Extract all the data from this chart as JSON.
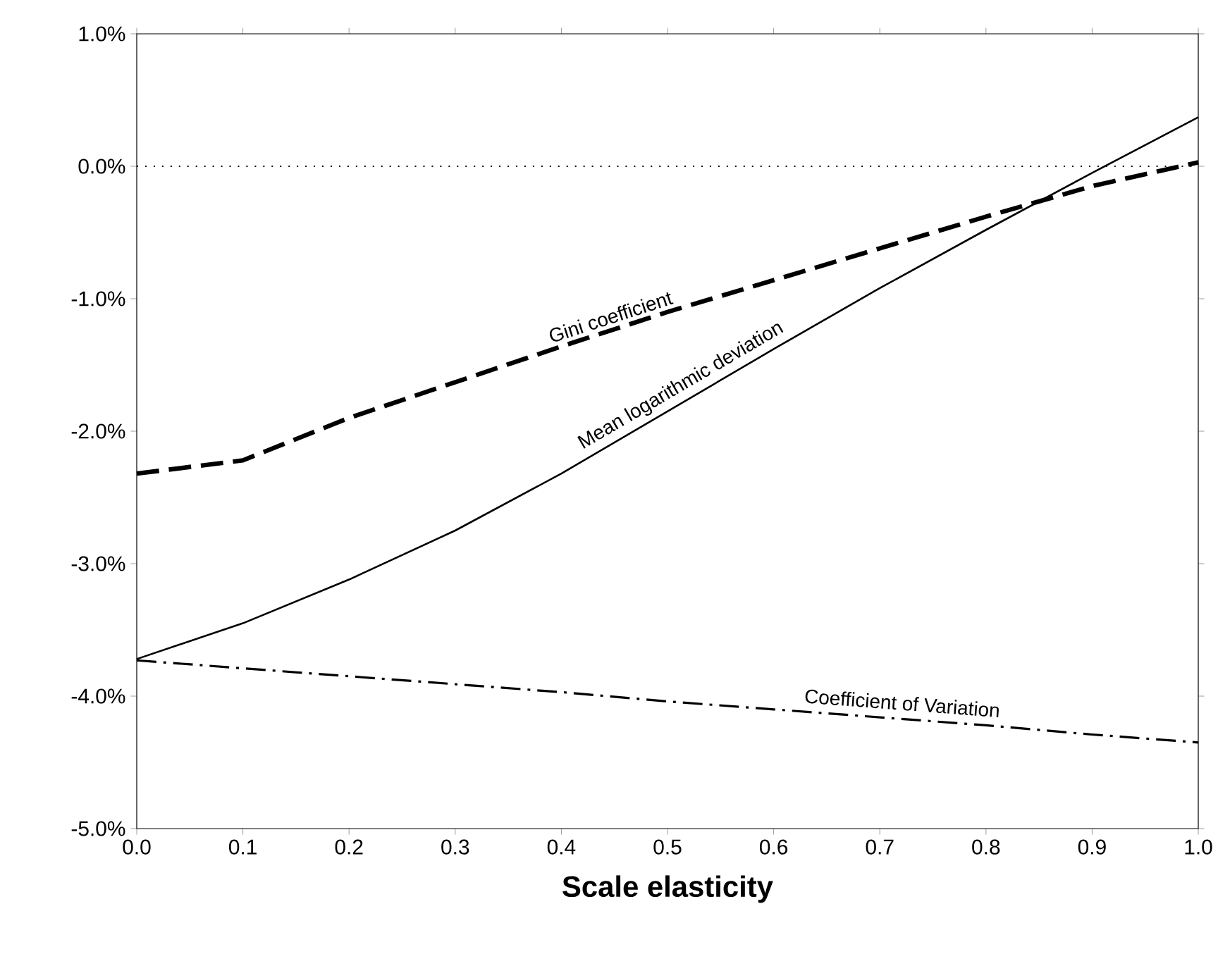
{
  "chart_data": {
    "type": "line",
    "xlabel": "Scale elasticity",
    "x": [
      0,
      0.1,
      0.2,
      0.3,
      0.4,
      0.5,
      0.6,
      0.7,
      0.8,
      0.9,
      1.0
    ],
    "series": [
      {
        "name": "Gini coefficient",
        "color": "#000000",
        "line_style": "dashed",
        "values": [
          -2.32,
          -2.22,
          -1.9,
          -1.63,
          -1.36,
          -1.1,
          -0.86,
          -0.62,
          -0.38,
          -0.15,
          0.03
        ]
      },
      {
        "name": "Mean logarithmic deviation",
        "color": "#000000",
        "line_style": "solid",
        "values": [
          -3.72,
          -3.45,
          -3.12,
          -2.75,
          -2.32,
          -1.85,
          -1.38,
          -0.92,
          -0.48,
          -0.05,
          0.37
        ]
      },
      {
        "name": "Coefficient of Variation",
        "color": "#000000",
        "line_style": "dashdot",
        "values": [
          -3.73,
          -3.79,
          -3.85,
          -3.91,
          -3.97,
          -4.04,
          -4.1,
          -4.16,
          -4.22,
          -4.29,
          -4.35
        ]
      }
    ],
    "xlim": [
      0,
      1.0
    ],
    "ylim": [
      -5,
      1
    ],
    "xticks": [
      {
        "value": 0,
        "label": "0.0"
      },
      0.1,
      0.2,
      0.3,
      0.4,
      0.5,
      0.6,
      0.7,
      0.8,
      0.9,
      {
        "value": 1.0,
        "label": "1.0"
      }
    ],
    "yticks": [
      {
        "value": -5,
        "label": "-5.0%"
      },
      {
        "value": -4,
        "label": "-4.0%"
      },
      {
        "value": -3,
        "label": "-3.0%"
      },
      {
        "value": -2,
        "label": "-2.0%"
      },
      {
        "value": -1,
        "label": "-1.0%"
      },
      {
        "value": 0,
        "label": "0.0%"
      },
      {
        "value": 1,
        "label": "1.0%"
      }
    ],
    "ref_lines": [
      {
        "axis": "y",
        "value": 0,
        "line_style": "dotted",
        "color": "#000000"
      }
    ],
    "grid": false,
    "marker": "none"
  }
}
